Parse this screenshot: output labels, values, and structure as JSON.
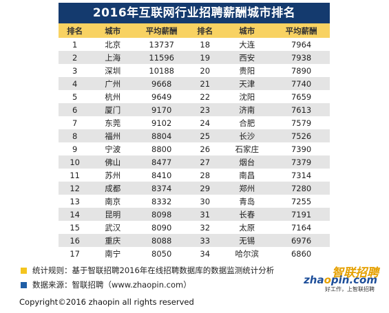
{
  "title": "2016年互联网行业招聘薪酬城市排名",
  "headers": [
    "排名",
    "城市",
    "平均薪酬",
    "排名",
    "城市",
    "平均薪酬"
  ],
  "rows": [
    [
      "1",
      "北京",
      "13737",
      "18",
      "大连",
      "7964"
    ],
    [
      "2",
      "上海",
      "11596",
      "19",
      "西安",
      "7938"
    ],
    [
      "3",
      "深圳",
      "10188",
      "20",
      "贵阳",
      "7890"
    ],
    [
      "4",
      "广州",
      "9668",
      "21",
      "天津",
      "7740"
    ],
    [
      "5",
      "杭州",
      "9649",
      "22",
      "沈阳",
      "7659"
    ],
    [
      "6",
      "厦门",
      "9170",
      "23",
      "济南",
      "7613"
    ],
    [
      "7",
      "东莞",
      "9102",
      "24",
      "合肥",
      "7579"
    ],
    [
      "8",
      "福州",
      "8804",
      "25",
      "长沙",
      "7526"
    ],
    [
      "9",
      "宁波",
      "8800",
      "26",
      "石家庄",
      "7390"
    ],
    [
      "10",
      "佛山",
      "8477",
      "27",
      "烟台",
      "7379"
    ],
    [
      "11",
      "苏州",
      "8410",
      "28",
      "南昌",
      "7314"
    ],
    [
      "12",
      "成都",
      "8374",
      "29",
      "郑州",
      "7280"
    ],
    [
      "13",
      "南京",
      "8332",
      "30",
      "青岛",
      "7255"
    ],
    [
      "14",
      "昆明",
      "8098",
      "31",
      "长春",
      "7191"
    ],
    [
      "15",
      "武汉",
      "8090",
      "32",
      "太原",
      "7164"
    ],
    [
      "16",
      "重庆",
      "8088",
      "33",
      "无锡",
      "6976"
    ],
    [
      "17",
      "南宁",
      "8050",
      "34",
      "哈尔滨",
      "6860"
    ]
  ],
  "notes": {
    "method": "统计规则：基于智联招聘2016年在线招聘数据库的数据监测统计分析",
    "source": "数据来源：智联招聘（www.zhaopin.com）"
  },
  "logo": {
    "cn": "智联招聘",
    "en_a": "zha",
    "en_o": "o",
    "en_b": "pin.com",
    "slogan": "好工作，上智联招聘"
  },
  "copyright": "Copyright©2016 zhaopin all rights reserved",
  "colors": {
    "title_bg": "#143a6e",
    "header_bg": "#f8d262",
    "row_alt_bg": "#e4e4e4",
    "bullet_yellow": "#f4c51f",
    "bullet_blue": "#1f5fa6"
  }
}
